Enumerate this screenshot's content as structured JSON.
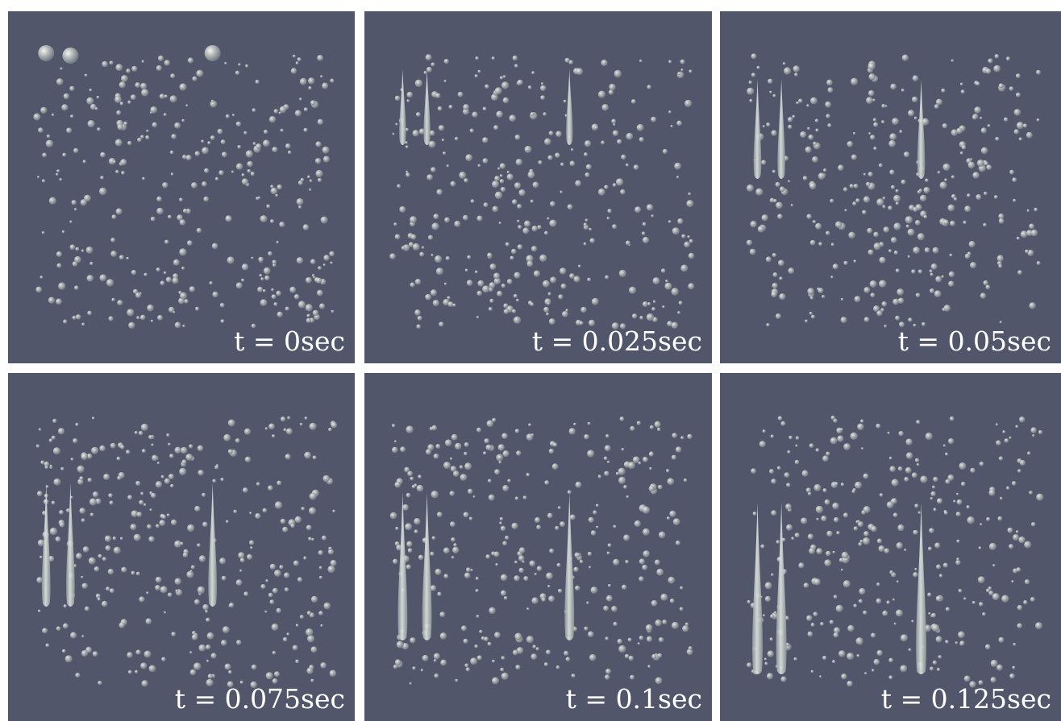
{
  "panels": [
    {
      "label": "t = 0sec"
    },
    {
      "label": "t = 0.025sec"
    },
    {
      "label": "t = 0.05sec"
    },
    {
      "label": "t = 0.075sec"
    },
    {
      "label": "t = 0.1sec"
    },
    {
      "label": "t = 0.125sec"
    }
  ]
}
